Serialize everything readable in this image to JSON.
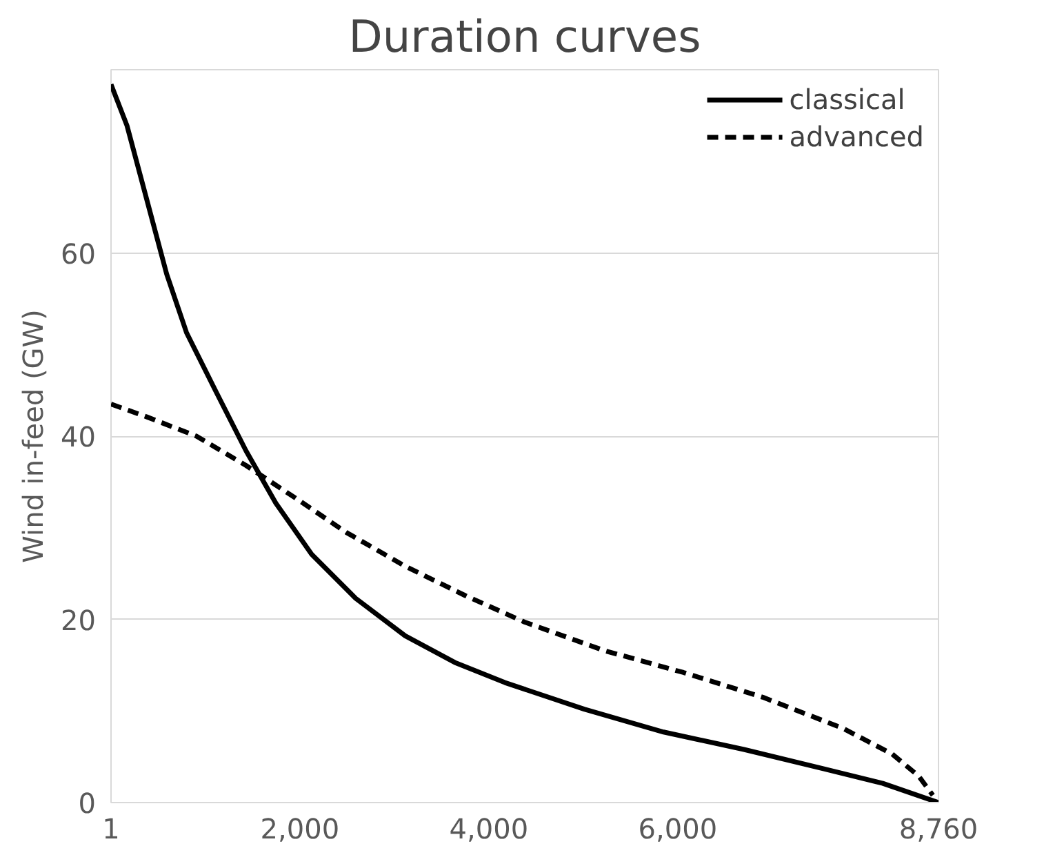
{
  "chart_data": {
    "type": "line",
    "title": "Duration curves",
    "ylabel": "Wind in-feed (GW)",
    "xlim": [
      1,
      8760
    ],
    "xticks": [
      1,
      {
        "value": 2000,
        "label": "2,000"
      },
      {
        "value": 4000,
        "label": "4,000"
      },
      {
        "value": 6000,
        "label": "6,000"
      },
      {
        "value": 8760,
        "label": "8,760"
      }
    ],
    "ylim": [
      0,
      80
    ],
    "yticks": [
      0,
      20,
      40,
      60
    ],
    "grid": "y",
    "legend": "top right",
    "marker": "none",
    "series": [
      {
        "name": "classical",
        "color": "#000000",
        "line_style": "solid",
        "x": [
          1,
          170,
          380,
          590,
          800,
          1115,
          1430,
          1745,
          2125,
          2590,
          3115,
          3640,
          4170,
          5010,
          5850,
          6700,
          7540,
          8170,
          8760
        ],
        "values": [
          78.4,
          73.9,
          65.8,
          57.7,
          51.3,
          44.8,
          38.4,
          32.7,
          27.1,
          22.3,
          18.2,
          15.3,
          13.1,
          10.2,
          7.7,
          5.8,
          3.7,
          2.1,
          0
        ]
      },
      {
        "name": "advanced",
        "color": "#000000",
        "line_style": "dashed",
        "x": [
          1,
          380,
          905,
          1430,
          1960,
          2490,
          3115,
          3750,
          4380,
          5220,
          6060,
          6900,
          7750,
          8270,
          8550,
          8700
        ],
        "values": [
          43.5,
          42.1,
          40,
          36.8,
          33.2,
          29.5,
          25.8,
          22.6,
          19.7,
          16.6,
          14.2,
          11.5,
          8.1,
          5.3,
          2.9,
          0.8
        ]
      }
    ]
  }
}
